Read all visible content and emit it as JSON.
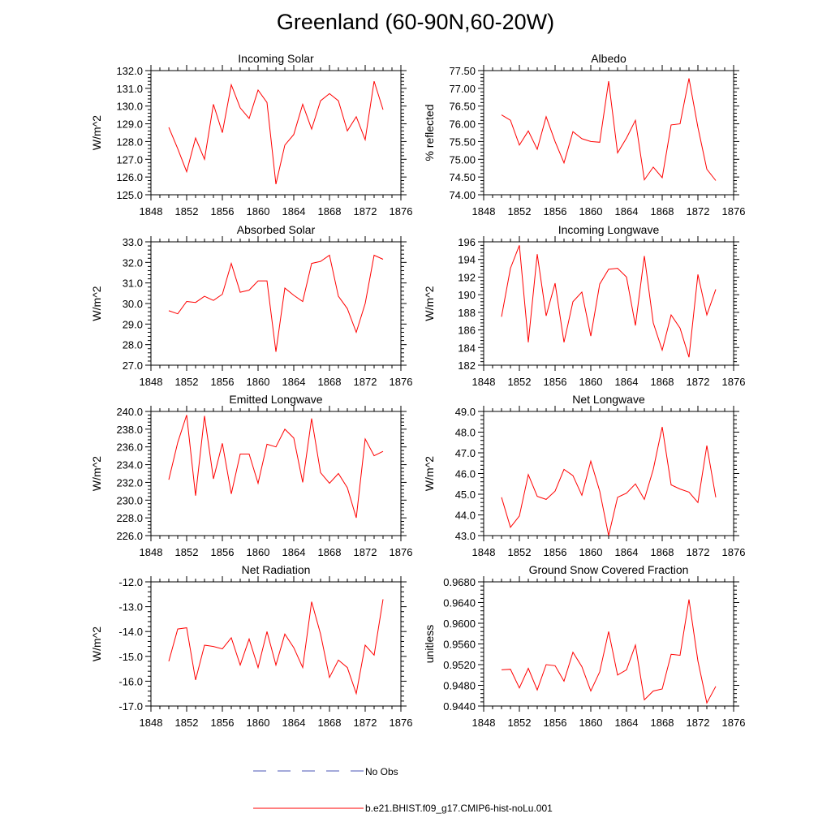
{
  "title": "Greenland (60-90N,60-20W)",
  "chart_data": [
    {
      "type": "line",
      "title": "Incoming Solar",
      "ylabel": "W/m^2",
      "ylim": [
        125.0,
        132.0
      ],
      "yticks": [
        "125.0",
        "126.0",
        "127.0",
        "128.0",
        "129.0",
        "130.0",
        "131.0",
        "132.0"
      ],
      "xlim": [
        1848,
        1876
      ],
      "xticks": [
        "1848",
        "1852",
        "1856",
        "1860",
        "1864",
        "1868",
        "1872",
        "1876"
      ],
      "series": [
        {
          "color": "#ff0000",
          "x": [
            1850,
            1851,
            1852,
            1853,
            1854,
            1855,
            1856,
            1857,
            1858,
            1859,
            1860,
            1861,
            1862,
            1863,
            1864,
            1865,
            1866,
            1867,
            1868,
            1869,
            1870,
            1871,
            1872,
            1873,
            1874
          ],
          "values": [
            128.8,
            127.6,
            126.3,
            128.2,
            127.0,
            130.1,
            128.5,
            131.2,
            129.9,
            129.3,
            130.9,
            130.2,
            125.6,
            127.8,
            128.4,
            130.1,
            128.7,
            130.3,
            130.7,
            130.3,
            128.6,
            129.4,
            128.1,
            131.4,
            129.8
          ]
        }
      ]
    },
    {
      "type": "line",
      "title": "Albedo",
      "ylabel": "% reflected",
      "ylim": [
        74.0,
        77.5
      ],
      "yticks": [
        "74.00",
        "74.50",
        "75.00",
        "75.50",
        "76.00",
        "76.50",
        "77.00",
        "77.50"
      ],
      "xlim": [
        1848,
        1876
      ],
      "xticks": [
        "1848",
        "1852",
        "1856",
        "1860",
        "1864",
        "1868",
        "1872",
        "1876"
      ],
      "series": [
        {
          "color": "#ff0000",
          "x": [
            1850,
            1851,
            1852,
            1853,
            1854,
            1855,
            1856,
            1857,
            1858,
            1859,
            1860,
            1861,
            1862,
            1863,
            1864,
            1865,
            1866,
            1867,
            1868,
            1869,
            1870,
            1871,
            1872,
            1873,
            1874
          ],
          "values": [
            76.25,
            76.1,
            75.4,
            75.8,
            75.28,
            76.2,
            75.5,
            74.9,
            75.78,
            75.58,
            75.5,
            75.48,
            77.2,
            75.18,
            75.6,
            76.1,
            74.42,
            74.78,
            74.48,
            75.97,
            76.0,
            77.28,
            75.9,
            74.72,
            74.4
          ]
        }
      ]
    },
    {
      "type": "line",
      "title": "Absorbed Solar",
      "ylabel": "W/m^2",
      "ylim": [
        27.0,
        33.0
      ],
      "yticks": [
        "27.0",
        "28.0",
        "29.0",
        "30.0",
        "31.0",
        "32.0",
        "33.0"
      ],
      "xlim": [
        1848,
        1876
      ],
      "xticks": [
        "1848",
        "1852",
        "1856",
        "1860",
        "1864",
        "1868",
        "1872",
        "1876"
      ],
      "series": [
        {
          "color": "#ff0000",
          "x": [
            1850,
            1851,
            1852,
            1853,
            1854,
            1855,
            1856,
            1857,
            1858,
            1859,
            1860,
            1861,
            1862,
            1863,
            1864,
            1865,
            1866,
            1867,
            1868,
            1869,
            1870,
            1871,
            1872,
            1873,
            1874
          ],
          "values": [
            29.65,
            29.5,
            30.1,
            30.05,
            30.35,
            30.15,
            30.45,
            31.95,
            30.55,
            30.65,
            31.1,
            31.1,
            27.65,
            30.75,
            30.4,
            30.1,
            31.95,
            32.05,
            32.35,
            30.35,
            29.75,
            28.6,
            30.0,
            32.35,
            32.15
          ]
        }
      ]
    },
    {
      "type": "line",
      "title": "Incoming Longwave",
      "ylabel": "W/m^2",
      "ylim": [
        182,
        196
      ],
      "yticks": [
        "182",
        "184",
        "186",
        "188",
        "190",
        "192",
        "194",
        "196"
      ],
      "xlim": [
        1848,
        1876
      ],
      "xticks": [
        "1848",
        "1852",
        "1856",
        "1860",
        "1864",
        "1868",
        "1872",
        "1876"
      ],
      "series": [
        {
          "color": "#ff0000",
          "x": [
            1850,
            1851,
            1852,
            1853,
            1854,
            1855,
            1856,
            1857,
            1858,
            1859,
            1860,
            1861,
            1862,
            1863,
            1864,
            1865,
            1866,
            1867,
            1868,
            1869,
            1870,
            1871,
            1872,
            1873,
            1874
          ],
          "values": [
            187.5,
            193.0,
            195.6,
            184.6,
            194.6,
            187.6,
            191.3,
            184.6,
            189.2,
            190.3,
            185.3,
            191.2,
            192.9,
            193.0,
            192.0,
            186.5,
            194.4,
            186.8,
            183.7,
            187.7,
            186.2,
            182.9,
            192.3,
            187.7,
            190.6
          ]
        }
      ]
    },
    {
      "type": "line",
      "title": "Emitted Longwave",
      "ylabel": "W/m^2",
      "ylim": [
        226.0,
        240.0
      ],
      "yticks": [
        "226.0",
        "228.0",
        "230.0",
        "232.0",
        "234.0",
        "236.0",
        "238.0",
        "240.0"
      ],
      "xlim": [
        1848,
        1876
      ],
      "xticks": [
        "1848",
        "1852",
        "1856",
        "1860",
        "1864",
        "1868",
        "1872",
        "1876"
      ],
      "series": [
        {
          "color": "#ff0000",
          "x": [
            1850,
            1851,
            1852,
            1853,
            1854,
            1855,
            1856,
            1857,
            1858,
            1859,
            1860,
            1861,
            1862,
            1863,
            1864,
            1865,
            1866,
            1867,
            1868,
            1869,
            1870,
            1871,
            1872,
            1873,
            1874
          ],
          "values": [
            232.3,
            236.5,
            239.6,
            230.5,
            239.5,
            232.4,
            236.4,
            230.7,
            235.2,
            235.2,
            231.9,
            236.3,
            236.0,
            238.0,
            237.0,
            232.0,
            239.2,
            233.1,
            231.9,
            233.0,
            231.4,
            228.0,
            236.9,
            235.0,
            235.5
          ]
        }
      ]
    },
    {
      "type": "line",
      "title": "Net Longwave",
      "ylabel": "W/m^2",
      "ylim": [
        43.0,
        49.0
      ],
      "yticks": [
        "43.0",
        "44.0",
        "45.0",
        "46.0",
        "47.0",
        "48.0",
        "49.0"
      ],
      "xlim": [
        1848,
        1876
      ],
      "xticks": [
        "1848",
        "1852",
        "1856",
        "1860",
        "1864",
        "1868",
        "1872",
        "1876"
      ],
      "series": [
        {
          "color": "#ff0000",
          "x": [
            1850,
            1851,
            1852,
            1853,
            1854,
            1855,
            1856,
            1857,
            1858,
            1859,
            1860,
            1861,
            1862,
            1863,
            1864,
            1865,
            1866,
            1867,
            1868,
            1869,
            1870,
            1871,
            1872,
            1873,
            1874
          ],
          "values": [
            44.85,
            43.4,
            43.95,
            45.95,
            44.9,
            44.75,
            45.15,
            46.2,
            45.9,
            44.95,
            46.6,
            45.15,
            43.0,
            44.85,
            45.05,
            45.5,
            44.75,
            46.2,
            48.25,
            45.45,
            45.25,
            45.1,
            44.6,
            47.35,
            44.85
          ]
        }
      ]
    },
    {
      "type": "line",
      "title": "Net Radiation",
      "ylabel": "W/m^2",
      "ylim": [
        -17.0,
        -12.0
      ],
      "yticks": [
        "-17.0",
        "-16.0",
        "-15.0",
        "-14.0",
        "-13.0",
        "-12.0"
      ],
      "xlim": [
        1848,
        1876
      ],
      "xticks": [
        "1848",
        "1852",
        "1856",
        "1860",
        "1864",
        "1868",
        "1872",
        "1876"
      ],
      "series": [
        {
          "color": "#ff0000",
          "x": [
            1850,
            1851,
            1852,
            1853,
            1854,
            1855,
            1856,
            1857,
            1858,
            1859,
            1860,
            1861,
            1862,
            1863,
            1864,
            1865,
            1866,
            1867,
            1868,
            1869,
            1870,
            1871,
            1872,
            1873,
            1874
          ],
          "values": [
            -15.2,
            -13.9,
            -13.85,
            -15.95,
            -14.55,
            -14.6,
            -14.7,
            -14.25,
            -15.35,
            -14.3,
            -15.45,
            -14.0,
            -15.35,
            -14.1,
            -14.65,
            -15.45,
            -12.8,
            -14.1,
            -15.85,
            -15.15,
            -15.45,
            -16.5,
            -14.55,
            -14.95,
            -12.7
          ]
        }
      ]
    },
    {
      "type": "line",
      "title": "Ground Snow Covered Fraction",
      "ylabel": "unitless",
      "ylim": [
        0.944,
        0.968
      ],
      "yticks": [
        "0.9440",
        "0.9480",
        "0.9520",
        "0.9560",
        "0.9600",
        "0.9640",
        "0.9680"
      ],
      "xlim": [
        1848,
        1876
      ],
      "xticks": [
        "1848",
        "1852",
        "1856",
        "1860",
        "1864",
        "1868",
        "1872",
        "1876"
      ],
      "series": [
        {
          "color": "#ff0000",
          "x": [
            1850,
            1851,
            1852,
            1853,
            1854,
            1855,
            1856,
            1857,
            1858,
            1859,
            1860,
            1861,
            1862,
            1863,
            1864,
            1865,
            1866,
            1867,
            1868,
            1869,
            1870,
            1871,
            1872,
            1873,
            1874
          ],
          "values": [
            0.951,
            0.9511,
            0.9475,
            0.9513,
            0.9471,
            0.952,
            0.9518,
            0.9488,
            0.9544,
            0.9516,
            0.9469,
            0.9506,
            0.9584,
            0.95,
            0.951,
            0.9558,
            0.9452,
            0.9469,
            0.9473,
            0.954,
            0.9538,
            0.9646,
            0.9527,
            0.9446,
            0.9478
          ]
        }
      ]
    }
  ],
  "legend": {
    "entries": [
      {
        "label": "No Obs",
        "color": "#4a55b5",
        "dash": "dashed"
      },
      {
        "label": "b.e21.BHIST.f09_g17.CMIP6-hist-noLu.001",
        "color": "#ff0000",
        "dash": "solid"
      }
    ]
  }
}
